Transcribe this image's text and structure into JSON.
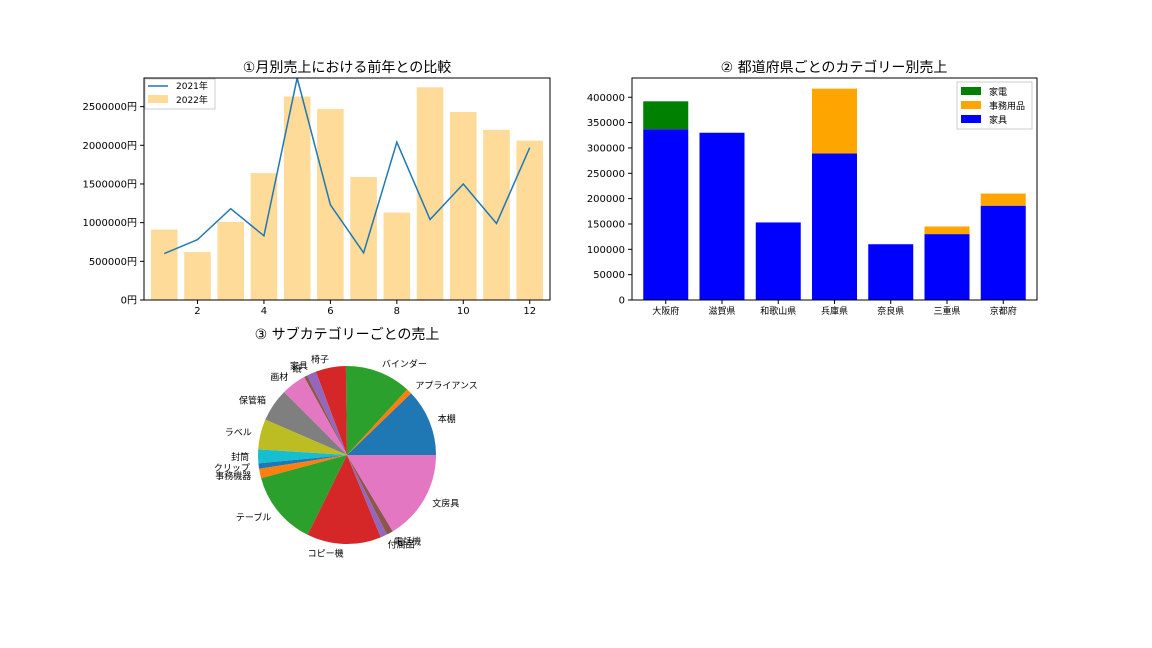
{
  "chart_data": [
    {
      "type": "bar",
      "title": "①月別売上における前年との比較",
      "xlabel": "",
      "ylabel": "",
      "x_ticks": [
        "2",
        "4",
        "6",
        "8",
        "10",
        "12"
      ],
      "y_ticks": [
        "0円",
        "500000円",
        "1000000円",
        "1500000円",
        "2000000円",
        "2500000円"
      ],
      "ylim": [
        0,
        2870000
      ],
      "legend_position": "upper-left",
      "series": [
        {
          "name": "2021年",
          "kind": "line",
          "color": "#1f77b4",
          "x": [
            1,
            2,
            3,
            4,
            5,
            6,
            7,
            8,
            9,
            10,
            11,
            12
          ],
          "values": [
            600000,
            780000,
            1180000,
            830000,
            2900000,
            1230000,
            610000,
            2040000,
            1040000,
            1500000,
            990000,
            1970000
          ]
        },
        {
          "name": "2022年",
          "kind": "bar",
          "color": "#ffdb99",
          "x": [
            1,
            2,
            3,
            4,
            5,
            6,
            7,
            8,
            9,
            10,
            11,
            12
          ],
          "values": [
            910000,
            620000,
            1010000,
            1640000,
            2630000,
            2470000,
            1590000,
            1130000,
            2750000,
            2430000,
            2200000,
            2060000
          ]
        }
      ]
    },
    {
      "type": "bar",
      "stacked": true,
      "title": "② 都道府県ごとのカテゴリー別売上",
      "xlabel": "",
      "ylabel": "",
      "categories": [
        "大阪府",
        "滋賀県",
        "和歌山県",
        "兵庫県",
        "奈良県",
        "三重県",
        "京都府"
      ],
      "y_ticks": [
        "0",
        "50000",
        "100000",
        "150000",
        "200000",
        "250000",
        "300000",
        "350000",
        "400000"
      ],
      "ylim": [
        0,
        438000
      ],
      "legend_position": "upper-right",
      "series": [
        {
          "name": "家具",
          "color": "#0000ff",
          "values": [
            337000,
            330000,
            153000,
            289000,
            110000,
            130000,
            186000
          ]
        },
        {
          "name": "事務用品",
          "color": "#ffa500",
          "values": [
            0,
            0,
            0,
            128000,
            0,
            15000,
            24000
          ]
        },
        {
          "name": "家電",
          "color": "#008000",
          "values": [
            55000,
            0,
            0,
            0,
            0,
            0,
            0
          ]
        }
      ]
    },
    {
      "type": "pie",
      "title": "③ サブカテゴリーごとの売上",
      "slices": [
        {
          "label": "本棚",
          "value": 12.2,
          "color": "#1f77b4"
        },
        {
          "label": "アプライアンス",
          "value": 1.0,
          "color": "#ff7f0e"
        },
        {
          "label": "バインダー",
          "value": 12.0,
          "color": "#2ca02c"
        },
        {
          "label": "椅子",
          "value": 5.5,
          "color": "#d62728"
        },
        {
          "label": "家具",
          "value": 1.7,
          "color": "#9467bd"
        },
        {
          "label": "紙",
          "value": 0.6,
          "color": "#8c564b"
        },
        {
          "label": "画材",
          "value": 4.5,
          "color": "#e377c2"
        },
        {
          "label": "保管箱",
          "value": 6.0,
          "color": "#7f7f7f"
        },
        {
          "label": "ラベル",
          "value": 5.5,
          "color": "#bcbd22"
        },
        {
          "label": "封筒",
          "value": 2.5,
          "color": "#17becf"
        },
        {
          "label": "クリップ",
          "value": 1.0,
          "color": "#1f77b4"
        },
        {
          "label": "事務機器",
          "value": 1.7,
          "color": "#ff7f0e"
        },
        {
          "label": "テーブル",
          "value": 13.5,
          "color": "#2ca02c"
        },
        {
          "label": "コピー機",
          "value": 13.5,
          "color": "#d62728"
        },
        {
          "label": "付属品",
          "value": 1.2,
          "color": "#9467bd"
        },
        {
          "label": "電話機",
          "value": 1.2,
          "color": "#8c564b"
        },
        {
          "label": "文房具",
          "value": 16.4,
          "color": "#e377c2"
        }
      ]
    }
  ]
}
